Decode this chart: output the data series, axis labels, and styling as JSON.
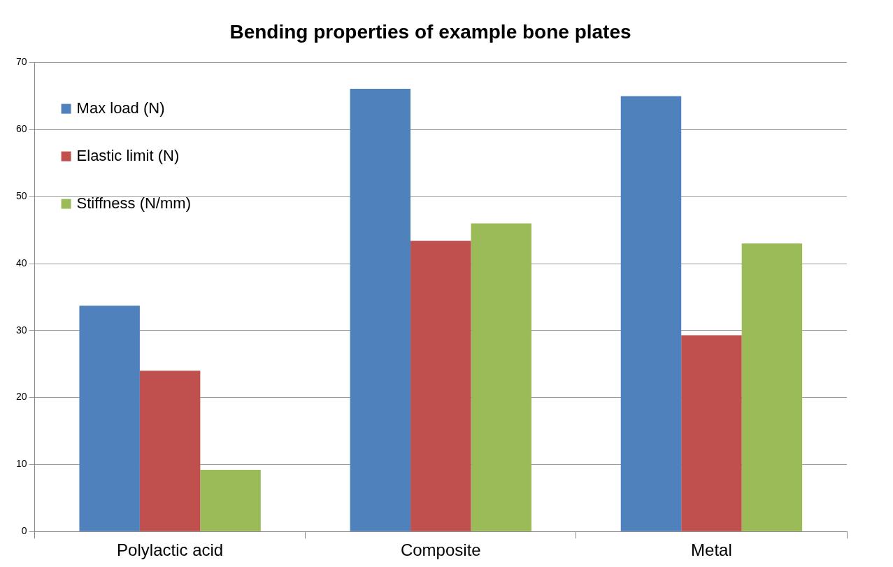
{
  "chart_data": {
    "type": "bar",
    "title": "Bending properties of example bone plates",
    "categories": [
      "Polylactic acid",
      "Composite",
      "Metal"
    ],
    "series": [
      {
        "name": "Max load (N)",
        "color": "#4f81bd",
        "values": [
          33.7,
          66.1,
          65.0
        ]
      },
      {
        "name": "Elastic limit (N)",
        "color": "#c0504d",
        "values": [
          24.0,
          43.4,
          29.3
        ]
      },
      {
        "name": "Stiffness (N/mm)",
        "color": "#9bbb59",
        "values": [
          9.2,
          46.0,
          43.0
        ]
      }
    ],
    "ylim": [
      0,
      70
    ],
    "yticks": [
      0,
      10,
      20,
      30,
      40,
      50,
      60,
      70
    ],
    "grid": "y",
    "legend": "top left"
  }
}
